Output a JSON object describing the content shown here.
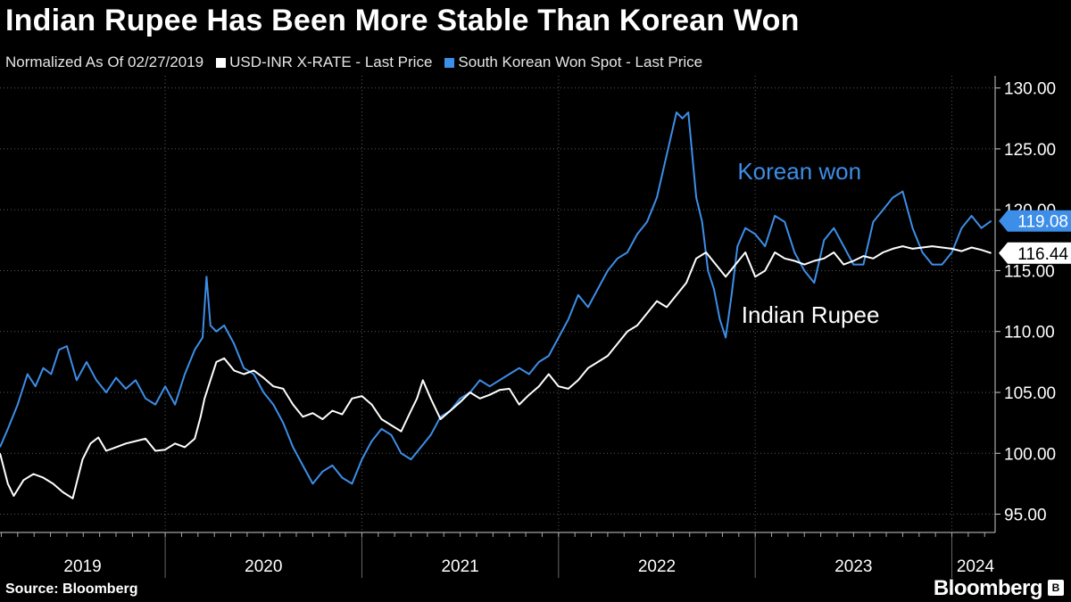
{
  "title": "Indian Rupee Has Been More Stable Than Korean Won",
  "legend": {
    "normalized_label": "Normalized As Of 02/27/2019",
    "series_inr": "USD-INR X-RATE - Last Price",
    "series_krw": "South Korean Won Spot - Last Price"
  },
  "colors": {
    "inr": "#ffffff",
    "krw": "#3d8ee8",
    "background": "#000000",
    "grid": "#5a5a5a"
  },
  "source": "Source: Bloomberg",
  "brand": "Bloomberg",
  "chart_data": {
    "type": "line",
    "title": "Indian Rupee Has Been More Stable Than Korean Won",
    "subtitle": "Normalized As Of 02/27/2019",
    "x_range": [
      2019.16,
      2024.22
    ],
    "ylim": [
      93.5,
      131.0
    ],
    "y_ticks": [
      95,
      100,
      105,
      110,
      115,
      120,
      125,
      130
    ],
    "y_tick_labels": [
      "95.00",
      "100.00",
      "105.00",
      "110.00",
      "115.00",
      "120.00",
      "125.00",
      "130.00"
    ],
    "x_year_labels": [
      "2019",
      "2020",
      "2021",
      "2022",
      "2023",
      "2024"
    ],
    "x_year_label_positions": [
      2019.58,
      2020.5,
      2021.5,
      2022.5,
      2023.5,
      2024.12
    ],
    "grid": true,
    "annotations": [
      {
        "text": "Korean won",
        "x": 2022.91,
        "y": 122.5
      },
      {
        "text": "Indian Rupee",
        "x": 2022.93,
        "y": 110.7
      }
    ],
    "last_values": [
      {
        "series": "South Korean Won Spot - Last Price",
        "label": "119.08",
        "value": 119.08
      },
      {
        "series": "USD-INR X-RATE - Last Price",
        "label": "116.44",
        "value": 116.44
      }
    ],
    "series": [
      {
        "name": "USD-INR X-RATE - Last Price",
        "color": "#ffffff",
        "x": [
          2019.16,
          2019.2,
          2019.23,
          2019.28,
          2019.33,
          2019.38,
          2019.43,
          2019.48,
          2019.53,
          2019.58,
          2019.62,
          2019.66,
          2019.7,
          2019.75,
          2019.8,
          2019.85,
          2019.9,
          2019.95,
          2020.0,
          2020.05,
          2020.1,
          2020.15,
          2020.18,
          2020.2,
          2020.23,
          2020.26,
          2020.3,
          2020.35,
          2020.4,
          2020.45,
          2020.5,
          2020.55,
          2020.6,
          2020.65,
          2020.7,
          2020.75,
          2020.8,
          2020.85,
          2020.9,
          2020.95,
          2021.0,
          2021.05,
          2021.1,
          2021.15,
          2021.2,
          2021.25,
          2021.28,
          2021.31,
          2021.35,
          2021.4,
          2021.45,
          2021.5,
          2021.55,
          2021.6,
          2021.65,
          2021.7,
          2021.75,
          2021.8,
          2021.85,
          2021.9,
          2021.95,
          2022.0,
          2022.05,
          2022.1,
          2022.15,
          2022.2,
          2022.25,
          2022.3,
          2022.35,
          2022.4,
          2022.45,
          2022.5,
          2022.55,
          2022.6,
          2022.65,
          2022.7,
          2022.75,
          2022.8,
          2022.85,
          2022.9,
          2022.95,
          2023.0,
          2023.05,
          2023.1,
          2023.15,
          2023.2,
          2023.25,
          2023.3,
          2023.35,
          2023.4,
          2023.45,
          2023.5,
          2023.55,
          2023.6,
          2023.65,
          2023.7,
          2023.75,
          2023.8,
          2023.85,
          2023.9,
          2023.95,
          2024.0,
          2024.05,
          2024.1,
          2024.15,
          2024.2
        ],
        "values": [
          100.0,
          97.5,
          96.5,
          97.8,
          98.3,
          98.0,
          97.5,
          96.8,
          96.3,
          99.5,
          100.8,
          101.3,
          100.2,
          100.5,
          100.8,
          101.0,
          101.2,
          100.2,
          100.3,
          100.8,
          100.5,
          101.2,
          103.0,
          104.5,
          106.0,
          107.5,
          107.8,
          106.8,
          106.5,
          106.8,
          106.2,
          105.5,
          105.3,
          104.0,
          103.0,
          103.3,
          102.8,
          103.5,
          103.2,
          104.5,
          104.7,
          104.0,
          102.8,
          102.3,
          101.8,
          103.5,
          104.5,
          106.0,
          104.5,
          102.8,
          103.5,
          104.2,
          105.0,
          104.5,
          104.8,
          105.2,
          105.3,
          104.0,
          104.8,
          105.5,
          106.5,
          105.5,
          105.3,
          106.0,
          107.0,
          107.5,
          108.0,
          109.0,
          110.0,
          110.5,
          111.5,
          112.5,
          112.0,
          113.0,
          114.0,
          116.0,
          116.5,
          115.5,
          114.5,
          115.5,
          116.5,
          114.5,
          115.0,
          116.5,
          116.0,
          115.8,
          115.5,
          115.8,
          116.0,
          116.5,
          115.5,
          115.8,
          116.2,
          116.0,
          116.5,
          116.8,
          117.0,
          116.8,
          116.9,
          117.0,
          116.9,
          116.8,
          116.6,
          116.9,
          116.7,
          116.44
        ]
      },
      {
        "name": "South Korean Won Spot - Last Price",
        "color": "#3d8ee8",
        "x": [
          2019.16,
          2019.2,
          2019.25,
          2019.3,
          2019.34,
          2019.38,
          2019.42,
          2019.46,
          2019.5,
          2019.55,
          2019.6,
          2019.65,
          2019.7,
          2019.75,
          2019.8,
          2019.85,
          2019.9,
          2019.95,
          2020.0,
          2020.05,
          2020.1,
          2020.15,
          2020.19,
          2020.21,
          2020.23,
          2020.26,
          2020.3,
          2020.35,
          2020.4,
          2020.45,
          2020.5,
          2020.55,
          2020.6,
          2020.65,
          2020.7,
          2020.75,
          2020.8,
          2020.85,
          2020.9,
          2020.95,
          2021.0,
          2021.05,
          2021.1,
          2021.15,
          2021.2,
          2021.25,
          2021.3,
          2021.35,
          2021.4,
          2021.45,
          2021.5,
          2021.55,
          2021.6,
          2021.65,
          2021.7,
          2021.75,
          2021.8,
          2021.85,
          2021.9,
          2021.95,
          2022.0,
          2022.05,
          2022.1,
          2022.15,
          2022.2,
          2022.25,
          2022.3,
          2022.35,
          2022.4,
          2022.45,
          2022.5,
          2022.55,
          2022.6,
          2022.63,
          2022.66,
          2022.7,
          2022.73,
          2022.76,
          2022.79,
          2022.82,
          2022.85,
          2022.88,
          2022.91,
          2022.95,
          2023.0,
          2023.05,
          2023.1,
          2023.15,
          2023.2,
          2023.25,
          2023.3,
          2023.35,
          2023.4,
          2023.45,
          2023.5,
          2023.55,
          2023.6,
          2023.65,
          2023.7,
          2023.75,
          2023.8,
          2023.85,
          2023.9,
          2023.95,
          2024.0,
          2024.05,
          2024.1,
          2024.15,
          2024.2
        ],
        "values": [
          100.5,
          102.0,
          104.0,
          106.5,
          105.5,
          107.0,
          106.5,
          108.5,
          108.8,
          106.0,
          107.5,
          106.0,
          105.0,
          106.2,
          105.3,
          106.0,
          104.5,
          104.0,
          105.5,
          104.0,
          106.5,
          108.5,
          109.5,
          114.5,
          110.5,
          110.0,
          110.5,
          109.0,
          107.0,
          106.5,
          105.0,
          104.0,
          102.5,
          100.5,
          99.0,
          97.5,
          98.5,
          99.0,
          98.0,
          97.5,
          99.5,
          101.0,
          102.0,
          101.5,
          100.0,
          99.5,
          100.5,
          101.5,
          103.0,
          103.5,
          104.5,
          105.0,
          106.0,
          105.5,
          106.0,
          106.5,
          107.0,
          106.5,
          107.5,
          108.0,
          109.5,
          111.0,
          113.0,
          112.0,
          113.5,
          115.0,
          116.0,
          116.5,
          118.0,
          119.0,
          121.0,
          124.5,
          128.0,
          127.5,
          128.0,
          121.0,
          119.0,
          115.0,
          113.5,
          111.0,
          109.5,
          113.0,
          117.0,
          118.5,
          118.0,
          117.0,
          119.5,
          119.0,
          116.5,
          115.0,
          114.0,
          117.5,
          118.5,
          117.0,
          115.5,
          115.5,
          119.0,
          120.0,
          121.0,
          121.5,
          118.5,
          116.5,
          115.5,
          115.5,
          116.5,
          118.5,
          119.5,
          118.5,
          119.08
        ]
      }
    ]
  }
}
